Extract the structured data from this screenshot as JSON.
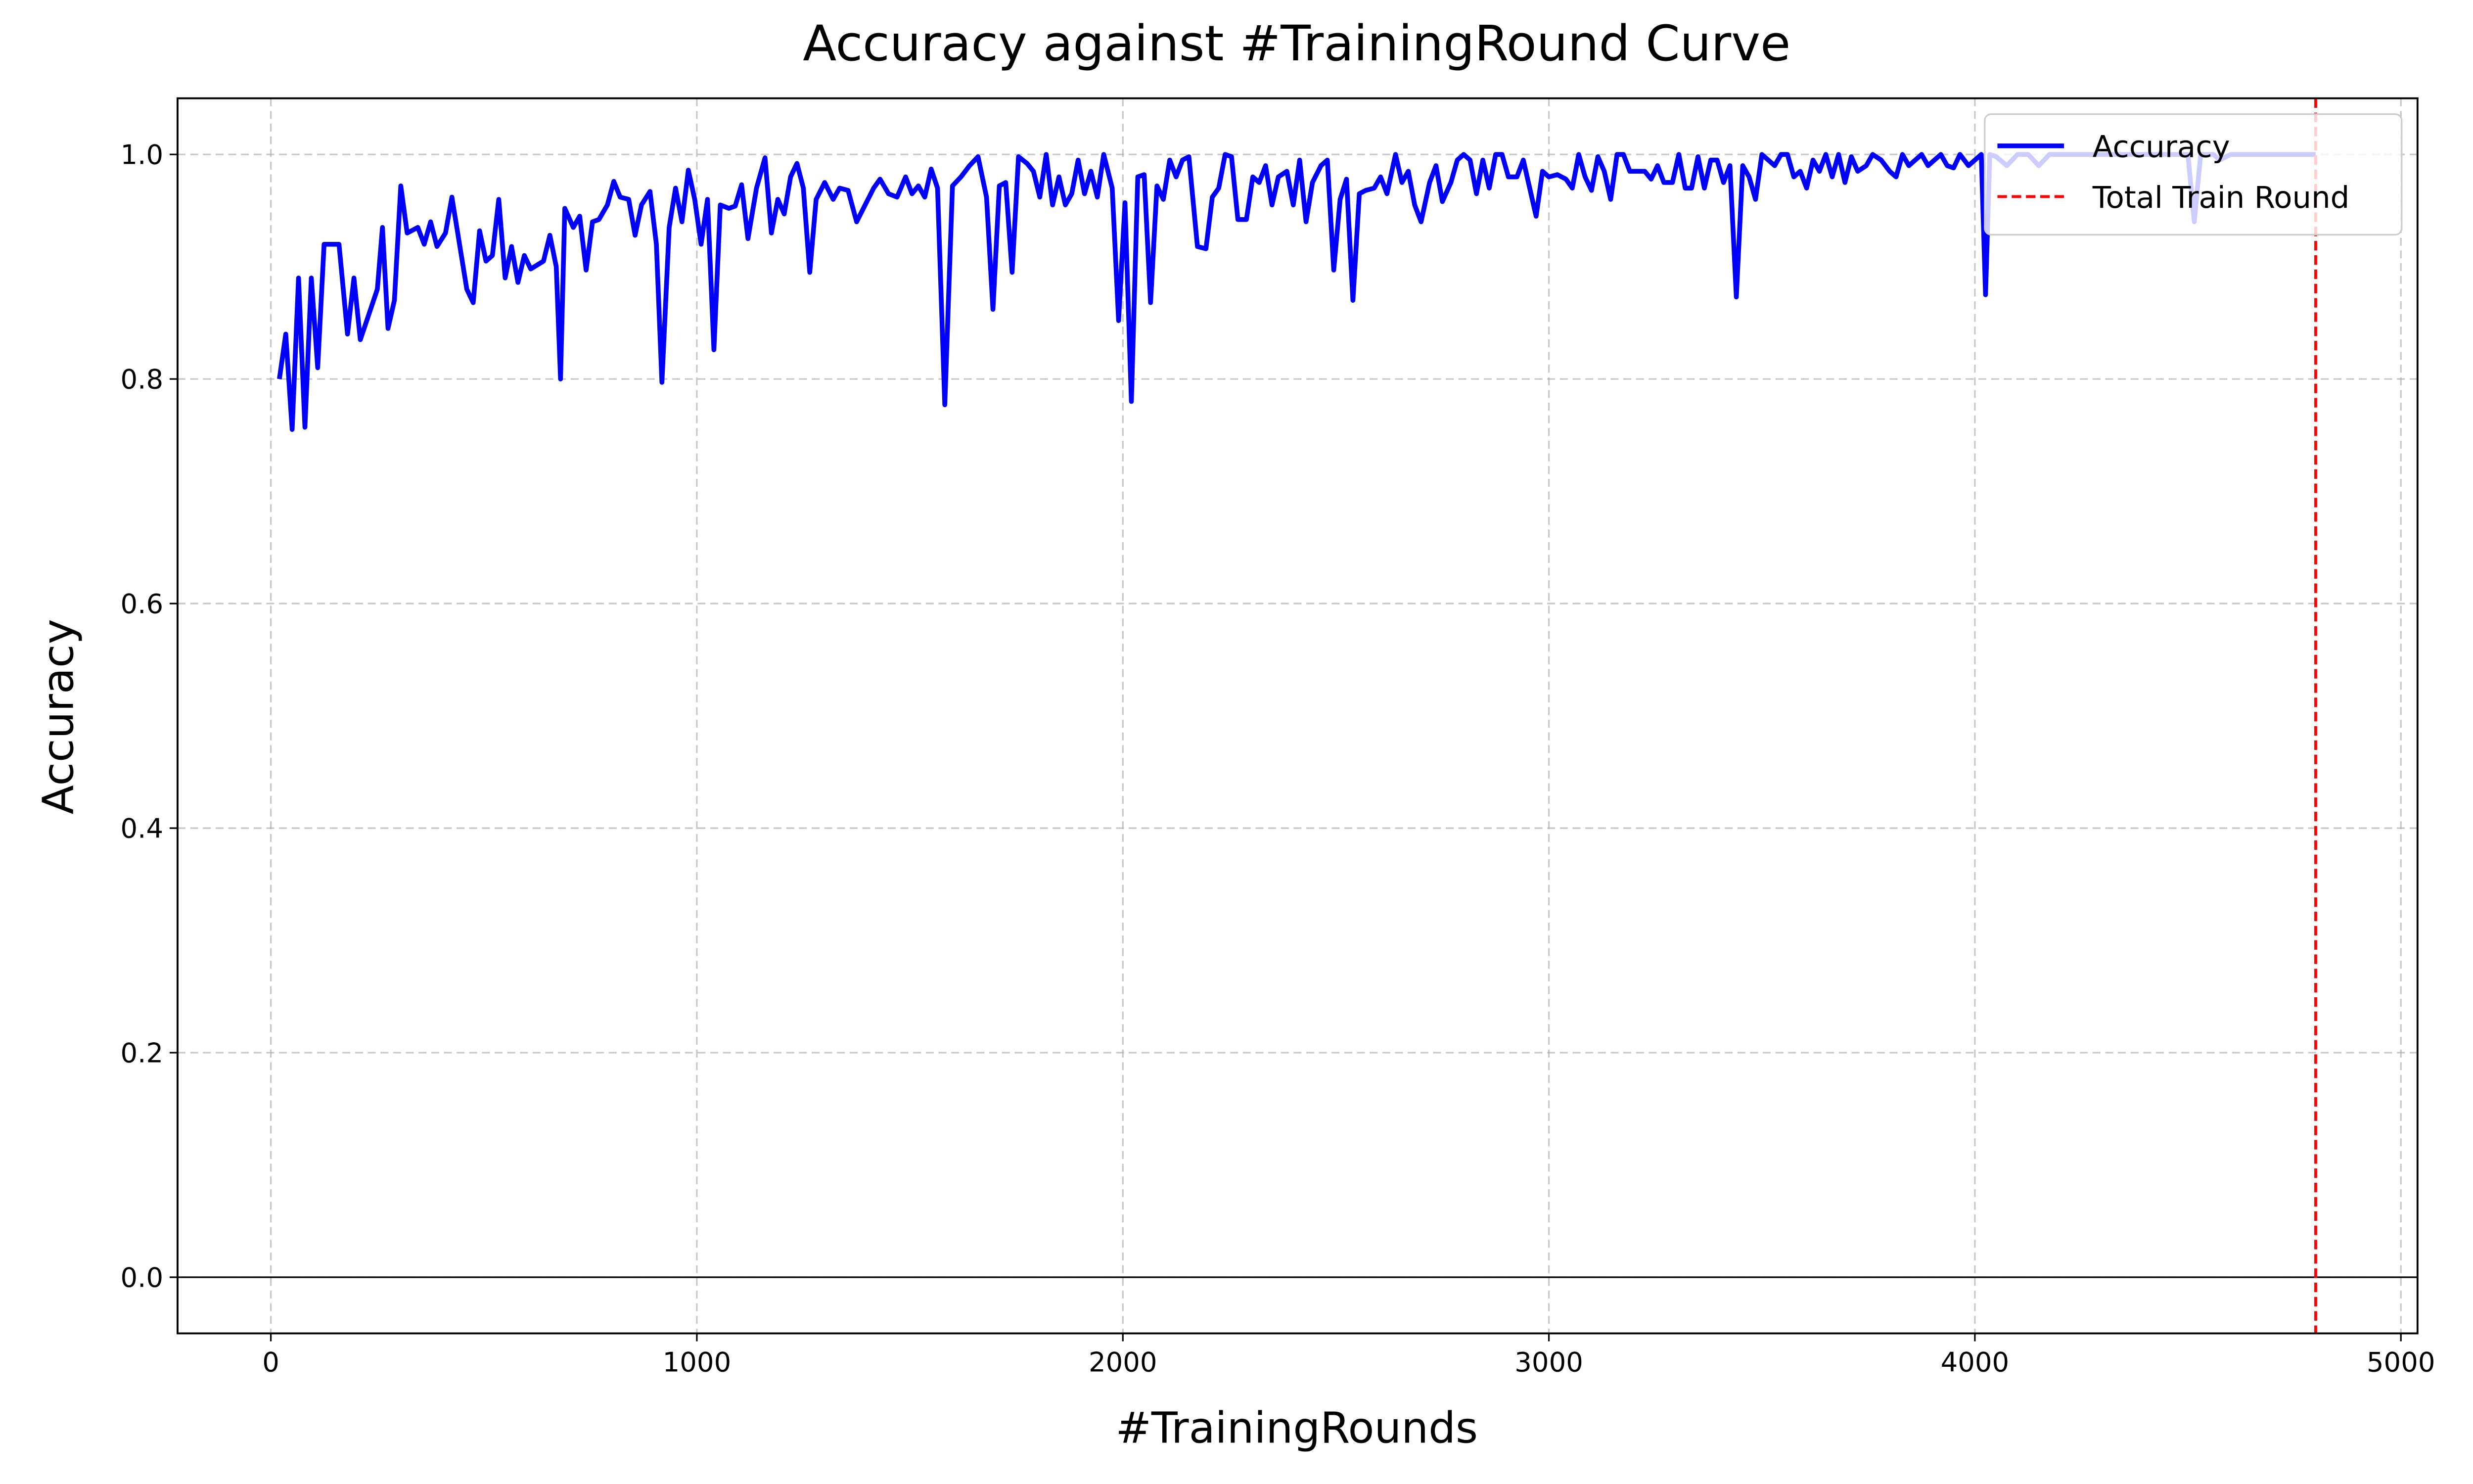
{
  "chart_data": {
    "type": "line",
    "title": "Accuracy against #TrainingRound Curve",
    "x_label": "#TrainingRounds",
    "y_label": "Accuracy",
    "x": [
      20,
      35,
      50,
      65,
      80,
      95,
      110,
      125,
      160,
      180,
      195,
      210,
      250,
      262,
      275,
      290,
      305,
      320,
      345,
      360,
      375,
      390,
      410,
      425,
      460,
      475,
      490,
      505,
      520,
      535,
      550,
      565,
      580,
      595,
      610,
      640,
      655,
      670,
      680,
      690,
      710,
      725,
      740,
      755,
      770,
      790,
      805,
      820,
      840,
      855,
      870,
      890,
      905,
      918,
      935,
      950,
      965,
      980,
      995,
      1010,
      1025,
      1040,
      1055,
      1075,
      1090,
      1105,
      1120,
      1140,
      1160,
      1175,
      1190,
      1205,
      1220,
      1235,
      1250,
      1265,
      1280,
      1300,
      1320,
      1335,
      1355,
      1375,
      1395,
      1415,
      1430,
      1450,
      1470,
      1490,
      1505,
      1520,
      1535,
      1550,
      1565,
      1582,
      1600,
      1620,
      1640,
      1660,
      1680,
      1695,
      1710,
      1725,
      1740,
      1755,
      1775,
      1790,
      1805,
      1820,
      1835,
      1850,
      1865,
      1880,
      1895,
      1910,
      1925,
      1940,
      1955,
      1975,
      1990,
      2005,
      2020,
      2035,
      2050,
      2065,
      2080,
      2095,
      2110,
      2125,
      2140,
      2155,
      2175,
      2195,
      2210,
      2225,
      2240,
      2255,
      2270,
      2290,
      2305,
      2320,
      2335,
      2350,
      2365,
      2385,
      2400,
      2415,
      2430,
      2445,
      2465,
      2480,
      2495,
      2510,
      2525,
      2540,
      2555,
      2570,
      2590,
      2605,
      2620,
      2640,
      2655,
      2670,
      2685,
      2700,
      2720,
      2735,
      2750,
      2770,
      2785,
      2800,
      2815,
      2830,
      2845,
      2860,
      2875,
      2890,
      2905,
      2925,
      2940,
      2955,
      2970,
      2985,
      3000,
      3020,
      3040,
      3055,
      3070,
      3085,
      3100,
      3115,
      3130,
      3145,
      3160,
      3175,
      3190,
      3205,
      3225,
      3240,
      3255,
      3270,
      3290,
      3305,
      3320,
      3335,
      3350,
      3365,
      3380,
      3395,
      3410,
      3425,
      3440,
      3455,
      3470,
      3485,
      3500,
      3515,
      3530,
      3545,
      3560,
      3575,
      3590,
      3605,
      3620,
      3635,
      3650,
      3665,
      3680,
      3695,
      3710,
      3725,
      3745,
      3760,
      3780,
      3800,
      3815,
      3830,
      3845,
      3860,
      3875,
      3890,
      3905,
      3920,
      3935,
      3950,
      3965,
      3985,
      4000,
      4015,
      4025,
      4035,
      4050,
      4075,
      4100,
      4125,
      4150,
      4175,
      4200,
      4250,
      4300,
      4350,
      4400,
      4450,
      4500,
      4515,
      4530,
      4560,
      4575,
      4600,
      4700,
      4800
    ],
    "series": [
      {
        "name": "Accuracy",
        "color": "#0000ff",
        "values": [
          0.8,
          0.84,
          0.755,
          0.89,
          0.757,
          0.89,
          0.81,
          0.92,
          0.92,
          0.84,
          0.89,
          0.835,
          0.88,
          0.935,
          0.845,
          0.87,
          0.972,
          0.93,
          0.935,
          0.92,
          0.94,
          0.918,
          0.93,
          0.962,
          0.88,
          0.868,
          0.932,
          0.905,
          0.91,
          0.96,
          0.89,
          0.918,
          0.886,
          0.91,
          0.898,
          0.905,
          0.928,
          0.9,
          0.8,
          0.952,
          0.935,
          0.945,
          0.897,
          0.94,
          0.942,
          0.955,
          0.976,
          0.962,
          0.96,
          0.928,
          0.955,
          0.967,
          0.92,
          0.797,
          0.935,
          0.97,
          0.94,
          0.986,
          0.96,
          0.92,
          0.96,
          0.826,
          0.955,
          0.952,
          0.954,
          0.973,
          0.925,
          0.97,
          0.997,
          0.93,
          0.96,
          0.947,
          0.98,
          0.992,
          0.97,
          0.895,
          0.96,
          0.975,
          0.96,
          0.97,
          0.968,
          0.94,
          0.955,
          0.97,
          0.978,
          0.965,
          0.962,
          0.98,
          0.965,
          0.972,
          0.962,
          0.987,
          0.97,
          0.777,
          0.972,
          0.98,
          0.99,
          0.998,
          0.962,
          0.862,
          0.972,
          0.975,
          0.895,
          0.998,
          0.992,
          0.985,
          0.962,
          1.0,
          0.955,
          0.98,
          0.955,
          0.965,
          0.995,
          0.965,
          0.985,
          0.962,
          1.0,
          0.97,
          0.852,
          0.957,
          0.78,
          0.98,
          0.982,
          0.868,
          0.972,
          0.96,
          0.995,
          0.98,
          0.995,
          0.998,
          0.918,
          0.916,
          0.962,
          0.97,
          1.0,
          0.998,
          0.942,
          0.942,
          0.98,
          0.975,
          0.99,
          0.955,
          0.98,
          0.985,
          0.955,
          0.995,
          0.94,
          0.975,
          0.99,
          0.995,
          0.897,
          0.96,
          0.978,
          0.87,
          0.965,
          0.968,
          0.97,
          0.98,
          0.965,
          1.0,
          0.975,
          0.985,
          0.955,
          0.94,
          0.975,
          0.99,
          0.958,
          0.975,
          0.995,
          1.0,
          0.995,
          0.965,
          0.995,
          0.97,
          1.0,
          1.0,
          0.98,
          0.98,
          0.995,
          0.97,
          0.945,
          0.985,
          0.98,
          0.982,
          0.978,
          0.97,
          1.0,
          0.98,
          0.968,
          0.998,
          0.985,
          0.96,
          1.0,
          1.0,
          0.985,
          0.985,
          0.985,
          0.978,
          0.99,
          0.975,
          0.975,
          1.0,
          0.97,
          0.97,
          0.998,
          0.97,
          0.995,
          0.995,
          0.975,
          0.99,
          0.873,
          0.99,
          0.98,
          0.96,
          1.0,
          0.995,
          0.99,
          1.0,
          1.0,
          0.98,
          0.985,
          0.97,
          0.995,
          0.985,
          1.0,
          0.98,
          1.0,
          0.975,
          0.998,
          0.985,
          0.99,
          1.0,
          0.995,
          0.985,
          0.98,
          1.0,
          0.99,
          0.995,
          1.0,
          0.99,
          0.995,
          1.0,
          0.99,
          0.988,
          1.0,
          0.99,
          0.995,
          1.0,
          0.875,
          1.0,
          0.998,
          0.99,
          1.0,
          1.0,
          0.99,
          1.0,
          1.0,
          1.0,
          1.0,
          1.0,
          1.0,
          1.0,
          1.0,
          0.94,
          1.0,
          1.0,
          0.995,
          1.0,
          1.0,
          1.0
        ]
      }
    ],
    "vlines": [
      {
        "name": "Total Train Round",
        "color": "#ff0000",
        "x": 4800
      }
    ],
    "hline": 0,
    "xlim": [
      -219,
      5039
    ],
    "ylim": [
      -0.05,
      1.05
    ],
    "xticks": [
      0,
      1000,
      2000,
      3000,
      4000,
      5000
    ],
    "yticks": [
      {
        "value": 0,
        "label": "0.0"
      },
      0.2,
      0.4,
      0.6,
      0.8,
      {
        "value": 1,
        "label": "1.0"
      }
    ],
    "grid": true,
    "legend": "upper right"
  }
}
